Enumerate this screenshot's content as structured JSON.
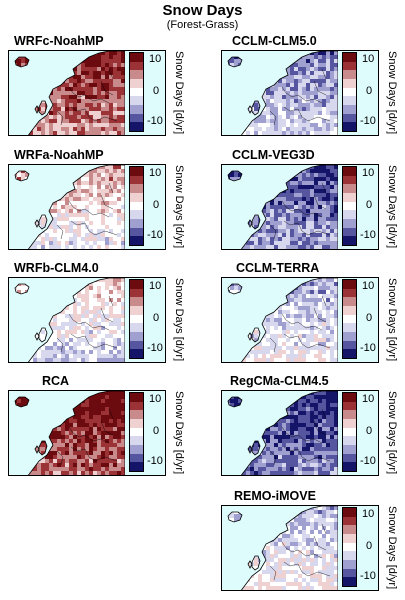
{
  "header": {
    "title": "Snow Days",
    "subtitle": "(Forest-Grass)"
  },
  "colorbar": {
    "label": "Snow Days [d/yr]",
    "ticks": [
      "10",
      "0",
      "-10"
    ],
    "colors": [
      "#6b0a0f",
      "#9b3236",
      "#c98a8c",
      "#efd1d2",
      "#ffffff",
      "#d7d7ee",
      "#9f9fd0",
      "#5656a0",
      "#141468"
    ]
  },
  "panels": [
    {
      "name": "WRFc-NoahMP",
      "mean_snow_days_anomaly": 10
    },
    {
      "name": "WRFa-NoahMP",
      "mean_snow_days_anomaly": 2
    },
    {
      "name": "WRFb-CLM4.0",
      "mean_snow_days_anomaly": 0
    },
    {
      "name": "RCA",
      "mean_snow_days_anomaly": 12
    },
    {
      "name": "CCLM-CLM5.0",
      "mean_snow_days_anomaly": -6
    },
    {
      "name": "CCLM-VEG3D",
      "mean_snow_days_anomaly": -9
    },
    {
      "name": "CCLM-TERRA",
      "mean_snow_days_anomaly": -3
    },
    {
      "name": "RegCMa-CLM4.5",
      "mean_snow_days_anomaly": -11
    },
    {
      "name": "REMO-iMOVE",
      "mean_snow_days_anomaly": -2
    }
  ]
}
